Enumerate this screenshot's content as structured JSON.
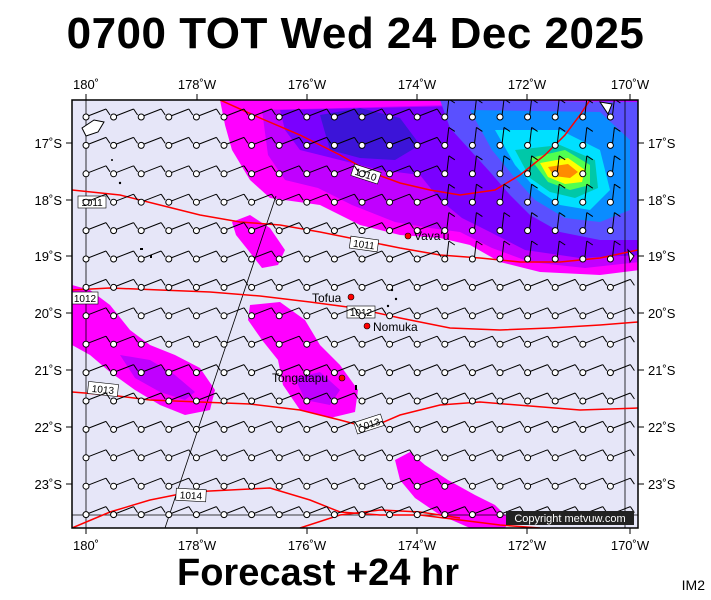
{
  "title": "0700 TOT Wed 24 Dec 2025",
  "footer": "Forecast +24 hr",
  "image_code": "IM2",
  "copyright": "Copyright metvuw.com",
  "lon_labels": [
    "180˚",
    "178˚W",
    "176˚W",
    "174˚W",
    "172˚W",
    "170˚W"
  ],
  "lat_labels": [
    "17˚S",
    "18˚S",
    "19˚S",
    "20˚S",
    "21˚S",
    "22˚S",
    "23˚S"
  ],
  "places": [
    {
      "name": "Vava'u"
    },
    {
      "name": "Tofua"
    },
    {
      "name": "Nomuka"
    },
    {
      "name": "Tongatapu"
    }
  ],
  "isobars": [
    "1010",
    "1011",
    "1011",
    "1012",
    "1012",
    "1013",
    "1013",
    "1014"
  ],
  "colors": {
    "background": "#e6e6f8",
    "rain_light": "#ff00ff",
    "rain_mid": "#7a00ff",
    "rain_high": "#00ffff",
    "rain_peak": "#ffff00",
    "isobar": "#ff0000",
    "place_dot": "#ff0000"
  }
}
